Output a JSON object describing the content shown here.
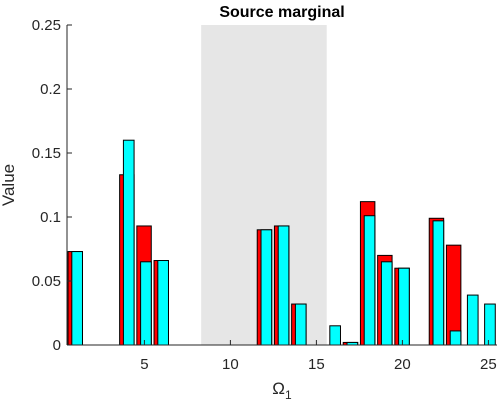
{
  "chart_data": {
    "type": "bar",
    "title": "Source marginal",
    "ylabel": "Value",
    "xlabel_main": "Ω",
    "xlabel_sub": "1",
    "xlim": [
      0.5,
      25.5
    ],
    "ylim": [
      0,
      0.25
    ],
    "xticks": [
      5,
      10,
      15,
      20,
      25
    ],
    "yticks": [
      0,
      0.05,
      0.1,
      0.15,
      0.2,
      0.25
    ],
    "ytick_labels": [
      "0",
      "0.05",
      "0.1",
      "0.15",
      "0.2",
      "0.25"
    ],
    "xtick_labels": [
      "5",
      "10",
      "15",
      "20",
      "25"
    ],
    "grid": false,
    "shaded_region": {
      "x_from": 8.3,
      "x_to": 15.6,
      "color": "#e6e6e6"
    },
    "x": [
      1,
      2,
      3,
      4,
      5,
      6,
      7,
      8,
      9,
      10,
      11,
      12,
      13,
      14,
      15,
      16,
      17,
      18,
      19,
      20,
      21,
      22,
      23,
      24,
      25
    ],
    "series": [
      {
        "color": "#ff0000",
        "edge": "#000000",
        "values": [
          0.073,
          0,
          0,
          0.133,
          0.093,
          0.066,
          0,
          0,
          0,
          0,
          0,
          0.09,
          0.093,
          0.032,
          0,
          0,
          0.002,
          0.112,
          0.07,
          0.06,
          0,
          0.099,
          0.078,
          0,
          0
        ]
      },
      {
        "color": "#00ffff",
        "edge": "#000000",
        "values": [
          0.073,
          0,
          0,
          0.16,
          0.065,
          0.066,
          0,
          0,
          0,
          0,
          0,
          0.09,
          0.093,
          0.032,
          0,
          0.015,
          0.002,
          0.101,
          0.065,
          0.06,
          0,
          0.097,
          0.011,
          0.039,
          0.032
        ]
      }
    ]
  }
}
